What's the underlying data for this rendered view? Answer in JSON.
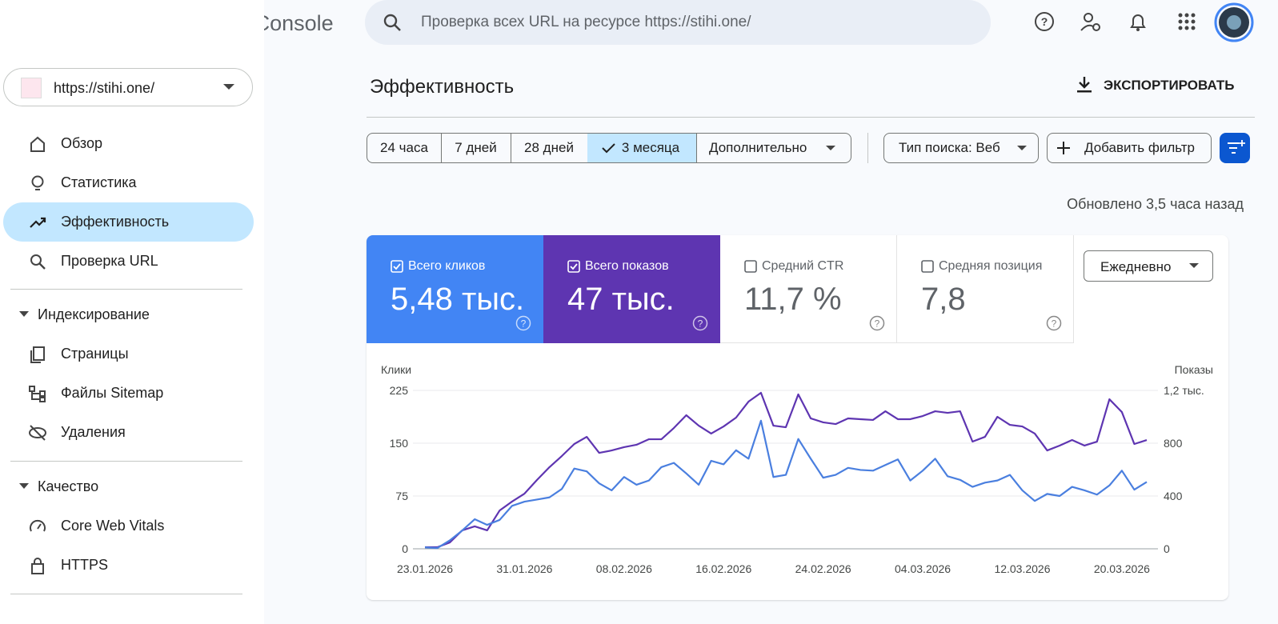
{
  "header": {
    "product": "Google Search Console",
    "search_placeholder": "Проверка всех URL на ресурсе https://stihi.one/"
  },
  "sidebar": {
    "property": "https://stihi.one/",
    "items": [
      "Обзор",
      "Статистика",
      "Эффективность",
      "Проверка URL"
    ],
    "sections": [
      {
        "title": "Индексирование",
        "items": [
          "Страницы",
          "Файлы Sitemap",
          "Удаления"
        ]
      },
      {
        "title": "Качество",
        "items": [
          "Core Web Vitals",
          "HTTPS"
        ]
      }
    ]
  },
  "main": {
    "title": "Эффективность",
    "export": "ЭКСПОРТИРОВАТЬ",
    "date_ranges": [
      "24 часа",
      "7 дней",
      "28 дней",
      "3 месяца"
    ],
    "more": "Дополнительно",
    "search_type": "Тип поиска: Веб",
    "add_filter": "Добавить фильтр",
    "updated": "Обновлено 3,5 часа назад",
    "metrics": [
      {
        "value": "5,48 тыс."
      },
      {
        "value": "47 тыс."
      },
      {
        "label": "Средний CTR",
        "value": "11,7 %"
      },
      {
        "label": "Средняя позиция",
        "value": "7,8"
      }
    ],
    "granularity": "Ежедневно"
  },
  "chart_data": {
    "type": "line",
    "y_label": "Клики",
    "y2_label": "Показы",
    "categories": [
      "23.01.2026",
      null,
      null,
      null,
      null,
      null,
      null,
      null,
      "31.01.2026",
      null,
      null,
      null,
      null,
      null,
      null,
      null,
      "08.02.2026",
      null,
      null,
      null,
      null,
      null,
      null,
      null,
      "16.02.2026",
      null,
      null,
      null,
      null,
      null,
      null,
      null,
      "24.02.2026",
      null,
      null,
      null,
      null,
      null,
      null,
      null,
      "04.03.2026",
      null,
      null,
      null,
      null,
      null,
      null,
      null,
      "12.03.2026",
      null,
      null,
      null,
      null,
      null,
      null,
      null,
      "20.03.2026",
      null,
      null
    ],
    "series": [
      {
        "name": "Всего кликов",
        "color": "#4285f4",
        "line_color": "#4a7fdf",
        "values": [
          2,
          1,
          12,
          26,
          42,
          34,
          41,
          61,
          67,
          70,
          73,
          85,
          114,
          110,
          93,
          83,
          102,
          91,
          97,
          116,
          122,
          107,
          91,
          125,
          120,
          140,
          128,
          182,
          102,
          105,
          156,
          128,
          101,
          105,
          115,
          112,
          111,
          119,
          127,
          97,
          111,
          128,
          103,
          98,
          88,
          94,
          97,
          105,
          83,
          68,
          78,
          75,
          88,
          83,
          77,
          90,
          111,
          84,
          95
        ]
      },
      {
        "name": "Всего показов",
        "color": "#5e35b1",
        "line_color": "#5e35b1",
        "axis": "y2",
        "values": [
          12,
          12,
          48,
          140,
          170,
          140,
          290,
          358,
          418,
          521,
          618,
          703,
          794,
          848,
          727,
          745,
          770,
          788,
          830,
          830,
          915,
          1012,
          933,
          873,
          927,
          994,
          1115,
          1182,
          933,
          921,
          1170,
          988,
          958,
          945,
          988,
          982,
          976,
          1042,
          982,
          982,
          1006,
          1042,
          1030,
          1042,
          812,
          848,
          1000,
          939,
          927,
          873,
          745,
          782,
          824,
          782,
          812,
          1133,
          1036,
          794,
          824
        ]
      }
    ],
    "ylim": [
      0,
      225
    ],
    "yticks": [
      0,
      75,
      150,
      225
    ],
    "y2lim": [
      0,
      1200
    ],
    "y2ticks": [
      0,
      400,
      800,
      {
        "value": 1200,
        "label": "1,2 тыс."
      }
    ],
    "grid": true
  }
}
